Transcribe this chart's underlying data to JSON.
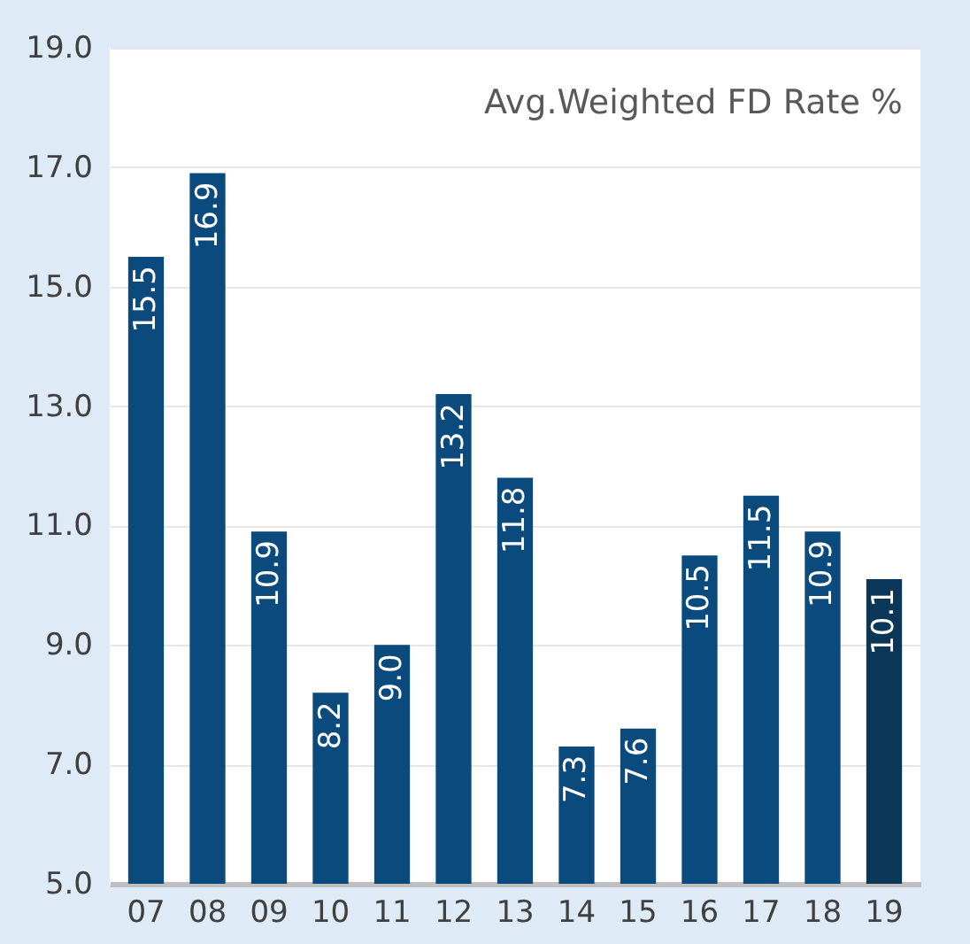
{
  "chart_data": {
    "type": "bar",
    "title": "Avg.Weighted FD Rate %",
    "categories": [
      "07",
      "08",
      "09",
      "10",
      "11",
      "12",
      "13",
      "14",
      "15",
      "16",
      "17",
      "18",
      "19"
    ],
    "values": [
      15.5,
      16.9,
      10.9,
      8.2,
      9.0,
      13.2,
      11.8,
      7.3,
      7.6,
      10.5,
      11.5,
      10.9,
      10.1
    ],
    "colors": [
      "#0b4a7d",
      "#0b4a7d",
      "#0b4a7d",
      "#0b4a7d",
      "#0b4a7d",
      "#0b4a7d",
      "#0b4a7d",
      "#0b4a7d",
      "#0b4a7d",
      "#0b4a7d",
      "#0b4a7d",
      "#0b4a7d",
      "#0a3657"
    ],
    "ylim": [
      5,
      19
    ],
    "yticks": [
      {
        "value": 5,
        "label": "5.0"
      },
      {
        "value": 7,
        "label": "7.0"
      },
      {
        "value": 9,
        "label": "9.0"
      },
      {
        "value": 11,
        "label": "11.0"
      },
      {
        "value": 13,
        "label": "13.0"
      },
      {
        "value": 15,
        "label": "15.0"
      },
      {
        "value": 17,
        "label": "17.0"
      },
      {
        "value": 19,
        "label": "19.0"
      }
    ],
    "value_labels": [
      "15.5",
      "16.9",
      "10.9",
      "8.2",
      "9.0",
      "13.2",
      "11.8",
      "7.3",
      "7.6",
      "10.5",
      "11.5",
      "10.9",
      "10.1"
    ],
    "grid": "y"
  }
}
